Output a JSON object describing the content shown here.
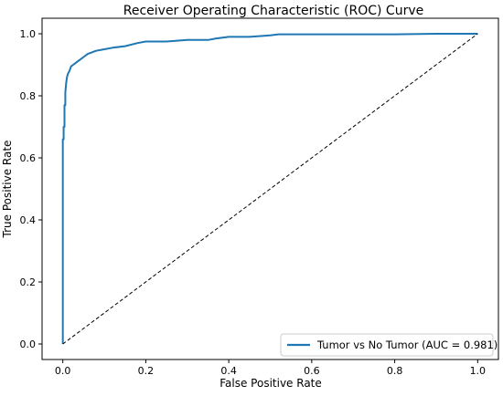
{
  "chart_data": {
    "type": "line",
    "title": "Receiver Operating Characteristic (ROC) Curve",
    "xlabel": "False Positive Rate",
    "ylabel": "True Positive Rate",
    "xlim": [
      -0.05,
      1.05
    ],
    "ylim": [
      -0.05,
      1.05
    ],
    "x_ticks": [
      0.0,
      0.2,
      0.4,
      0.6,
      0.8,
      1.0
    ],
    "y_ticks": [
      0.0,
      0.2,
      0.4,
      0.6,
      0.8,
      1.0
    ],
    "x_tick_labels": [
      "0.0",
      "0.2",
      "0.4",
      "0.6",
      "0.8",
      "1.0"
    ],
    "y_tick_labels": [
      "0.0",
      "0.2",
      "0.4",
      "0.6",
      "0.8",
      "1.0"
    ],
    "grid": false,
    "legend_position": "lower right",
    "series": [
      {
        "name": "Tumor vs No Tumor (AUC = 0.981)",
        "color": "#1f77b4",
        "style": "solid",
        "x": [
          0.0,
          0.0,
          0.002,
          0.002,
          0.004,
          0.004,
          0.006,
          0.006,
          0.008,
          0.01,
          0.012,
          0.016,
          0.02,
          0.025,
          0.03,
          0.035,
          0.04,
          0.05,
          0.06,
          0.07,
          0.08,
          0.1,
          0.12,
          0.15,
          0.18,
          0.2,
          0.25,
          0.3,
          0.35,
          0.37,
          0.4,
          0.45,
          0.5,
          0.52,
          0.6,
          0.7,
          0.8,
          0.9,
          1.0
        ],
        "y": [
          0.0,
          0.66,
          0.66,
          0.7,
          0.7,
          0.77,
          0.77,
          0.81,
          0.84,
          0.86,
          0.87,
          0.88,
          0.895,
          0.9,
          0.905,
          0.91,
          0.915,
          0.925,
          0.935,
          0.94,
          0.945,
          0.95,
          0.955,
          0.96,
          0.97,
          0.975,
          0.975,
          0.98,
          0.98,
          0.985,
          0.99,
          0.99,
          0.995,
          0.998,
          0.998,
          0.998,
          0.998,
          1.0,
          1.0
        ]
      },
      {
        "name": "",
        "color": "#000000",
        "style": "dashed",
        "x": [
          0.0,
          1.0
        ],
        "y": [
          0.0,
          1.0
        ]
      }
    ]
  }
}
